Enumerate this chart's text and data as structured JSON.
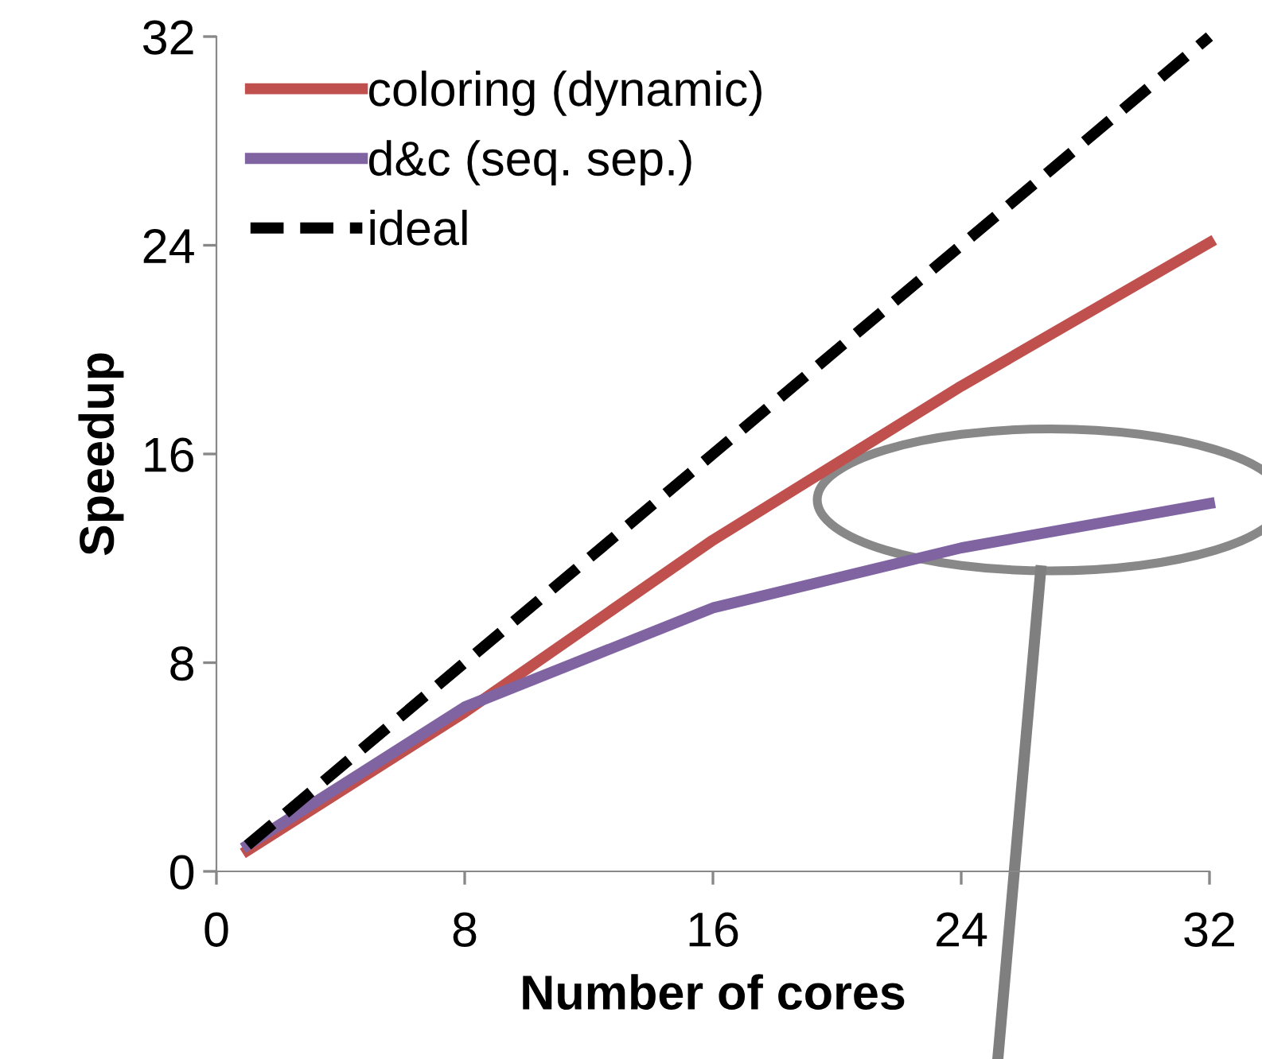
{
  "chart_data": {
    "type": "line",
    "xlabel": "Number of cores",
    "ylabel": "Speedup",
    "x": [
      1,
      8,
      16,
      24,
      32
    ],
    "series": [
      {
        "name": "coloring (dynamic)",
        "color": "#c0504d",
        "values": [
          0.8,
          6.1,
          12.7,
          18.6,
          24.1
        ]
      },
      {
        "name": "d&c (seq. sep.)",
        "color": "#8064a2",
        "values": [
          1.0,
          6.3,
          10.1,
          12.4,
          14.1
        ]
      },
      {
        "name": "ideal",
        "color": "#000000",
        "values": [
          1,
          8,
          16,
          24,
          32
        ],
        "line_style": "dashed"
      }
    ],
    "xlim": [
      0,
      32
    ],
    "ylim": [
      0,
      32
    ],
    "xticks": [
      0,
      8,
      16,
      24,
      32
    ],
    "yticks": [
      0,
      8,
      16,
      24,
      32
    ],
    "grid": false,
    "legend": "top left",
    "marker": "none"
  }
}
